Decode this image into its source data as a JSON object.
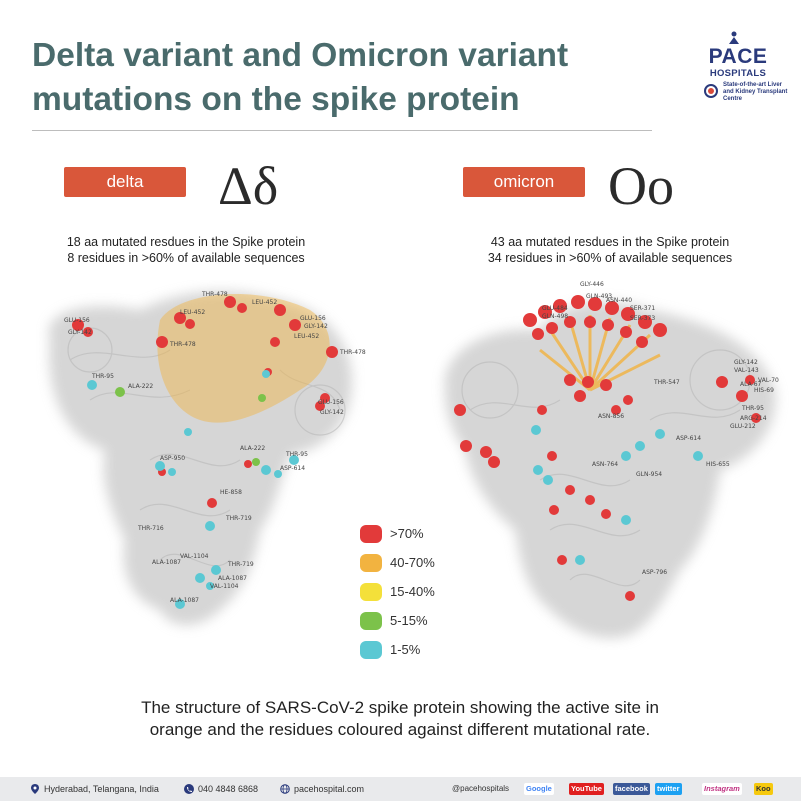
{
  "header": {
    "title_line1": "Delta variant and Omicron variant",
    "title_line2": "mutations on the spike protein"
  },
  "logo": {
    "name": "PACE",
    "sub": "HOSPITALS",
    "tagline": "State-of-the-art Liver and Kidney Transplant Centre"
  },
  "delta": {
    "label": "delta",
    "greek": "Δδ",
    "caption_line1": "18 aa mutated resdues in the Spike protein",
    "caption_line2": "8 residues in >60% of available sequences",
    "residues": [
      "THR-478",
      "LEU-452",
      "GLU-156",
      "GLY-142",
      "LEU-452",
      "THR-478",
      "GLU-156",
      "GLY-142",
      "LEU-452",
      "THR-478",
      "THR-95",
      "ALA-222",
      "ALA-222",
      "GLU-156",
      "GLY-142",
      "ASP-950",
      "THR-95",
      "HE-858",
      "ASP-614",
      "THR-716",
      "THR-719",
      "VAL-1104",
      "ALA-1087",
      "THR-719",
      "ALA-1087",
      "VAL-1104",
      "ALA-1087"
    ]
  },
  "omicron": {
    "label": "omicron",
    "greek": "Oo",
    "caption_line1": "43 aa mutated resdues in the Spike protein",
    "caption_line2": "34 residues in >60% of available sequences",
    "residues": [
      "GLY-446",
      "GLN-493",
      "ASN-440",
      "GLU-484",
      "GLN-498",
      "SER-371",
      "SER-373",
      "GLY-142",
      "VAL-143",
      "VAL-70",
      "ALA-67",
      "HIS-69",
      "THR-547",
      "THR-95",
      "ARG-214",
      "GLU-212",
      "ASP-614",
      "ASN-856",
      "HIS-655",
      "ASN-764",
      "ASP-796",
      "GLN-954"
    ]
  },
  "legend": [
    {
      "label": ">70%",
      "color": "#e23a3a"
    },
    {
      "label": "40-70%",
      "color": "#f2b340"
    },
    {
      "label": "15-40%",
      "color": "#f4e03a"
    },
    {
      "label": "5-15%",
      "color": "#7cc24a"
    },
    {
      "label": "1-5%",
      "color": "#5bc8d3"
    }
  ],
  "bottom_caption_line1": "The structure of SARS-CoV-2 spike protein showing the active site in",
  "bottom_caption_line2": "orange and the residues coloured against different mutational rate.",
  "footer": {
    "location": "Hyderabad, Telangana, India",
    "phone": "040 4848 6868",
    "website": "pacehospital.com",
    "handle": "@pacehospitals",
    "google": "Google",
    "youtube": "YouTube",
    "facebook": "facebook",
    "twitter": "twitter",
    "instagram": "Instagram",
    "koo": "Koo"
  },
  "colors": {
    "title": "#4a6b6c",
    "accent_pill": "#d9573a",
    "brand": "#2a3a7c",
    "active_site": "#f2b340"
  }
}
